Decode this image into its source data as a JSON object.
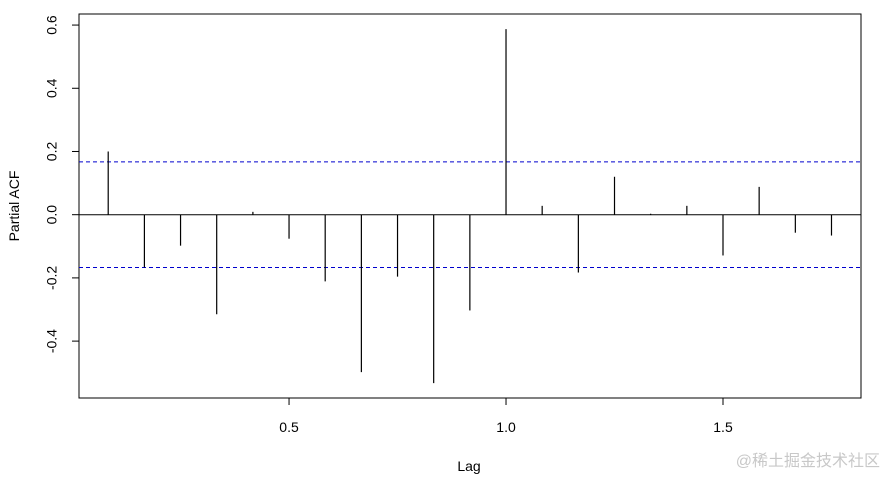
{
  "chart_data": {
    "type": "pacf",
    "xlabel": "Lag",
    "ylabel": "Partial ACF",
    "x": [
      0.0833,
      0.1667,
      0.25,
      0.3333,
      0.4167,
      0.5,
      0.5833,
      0.6667,
      0.75,
      0.8333,
      0.9167,
      1.0,
      1.0833,
      1.1667,
      1.25,
      1.3333,
      1.4167,
      1.5,
      1.5833,
      1.6667,
      1.75
    ],
    "values": [
      0.2,
      -0.167,
      -0.098,
      -0.315,
      0.009,
      -0.076,
      -0.211,
      -0.498,
      -0.196,
      -0.533,
      -0.303,
      0.587,
      0.028,
      -0.183,
      0.12,
      0.003,
      0.028,
      -0.129,
      0.088,
      -0.057,
      -0.066
    ],
    "color": "#000000",
    "ci": [
      -0.167,
      0.167
    ],
    "ci_color": "#0000cd",
    "xlim": [
      0.016,
      1.818
    ],
    "ylim": [
      -0.58,
      0.635
    ],
    "xticks": [
      0.5,
      {
        "value": 1.0,
        "label": "1.0"
      },
      1.5
    ],
    "yticks": [
      -0.4,
      -0.2,
      {
        "value": 0,
        "label": "0.0"
      },
      0.2,
      0.4,
      0.6
    ]
  },
  "watermark": "@稀土掘金技术社区"
}
